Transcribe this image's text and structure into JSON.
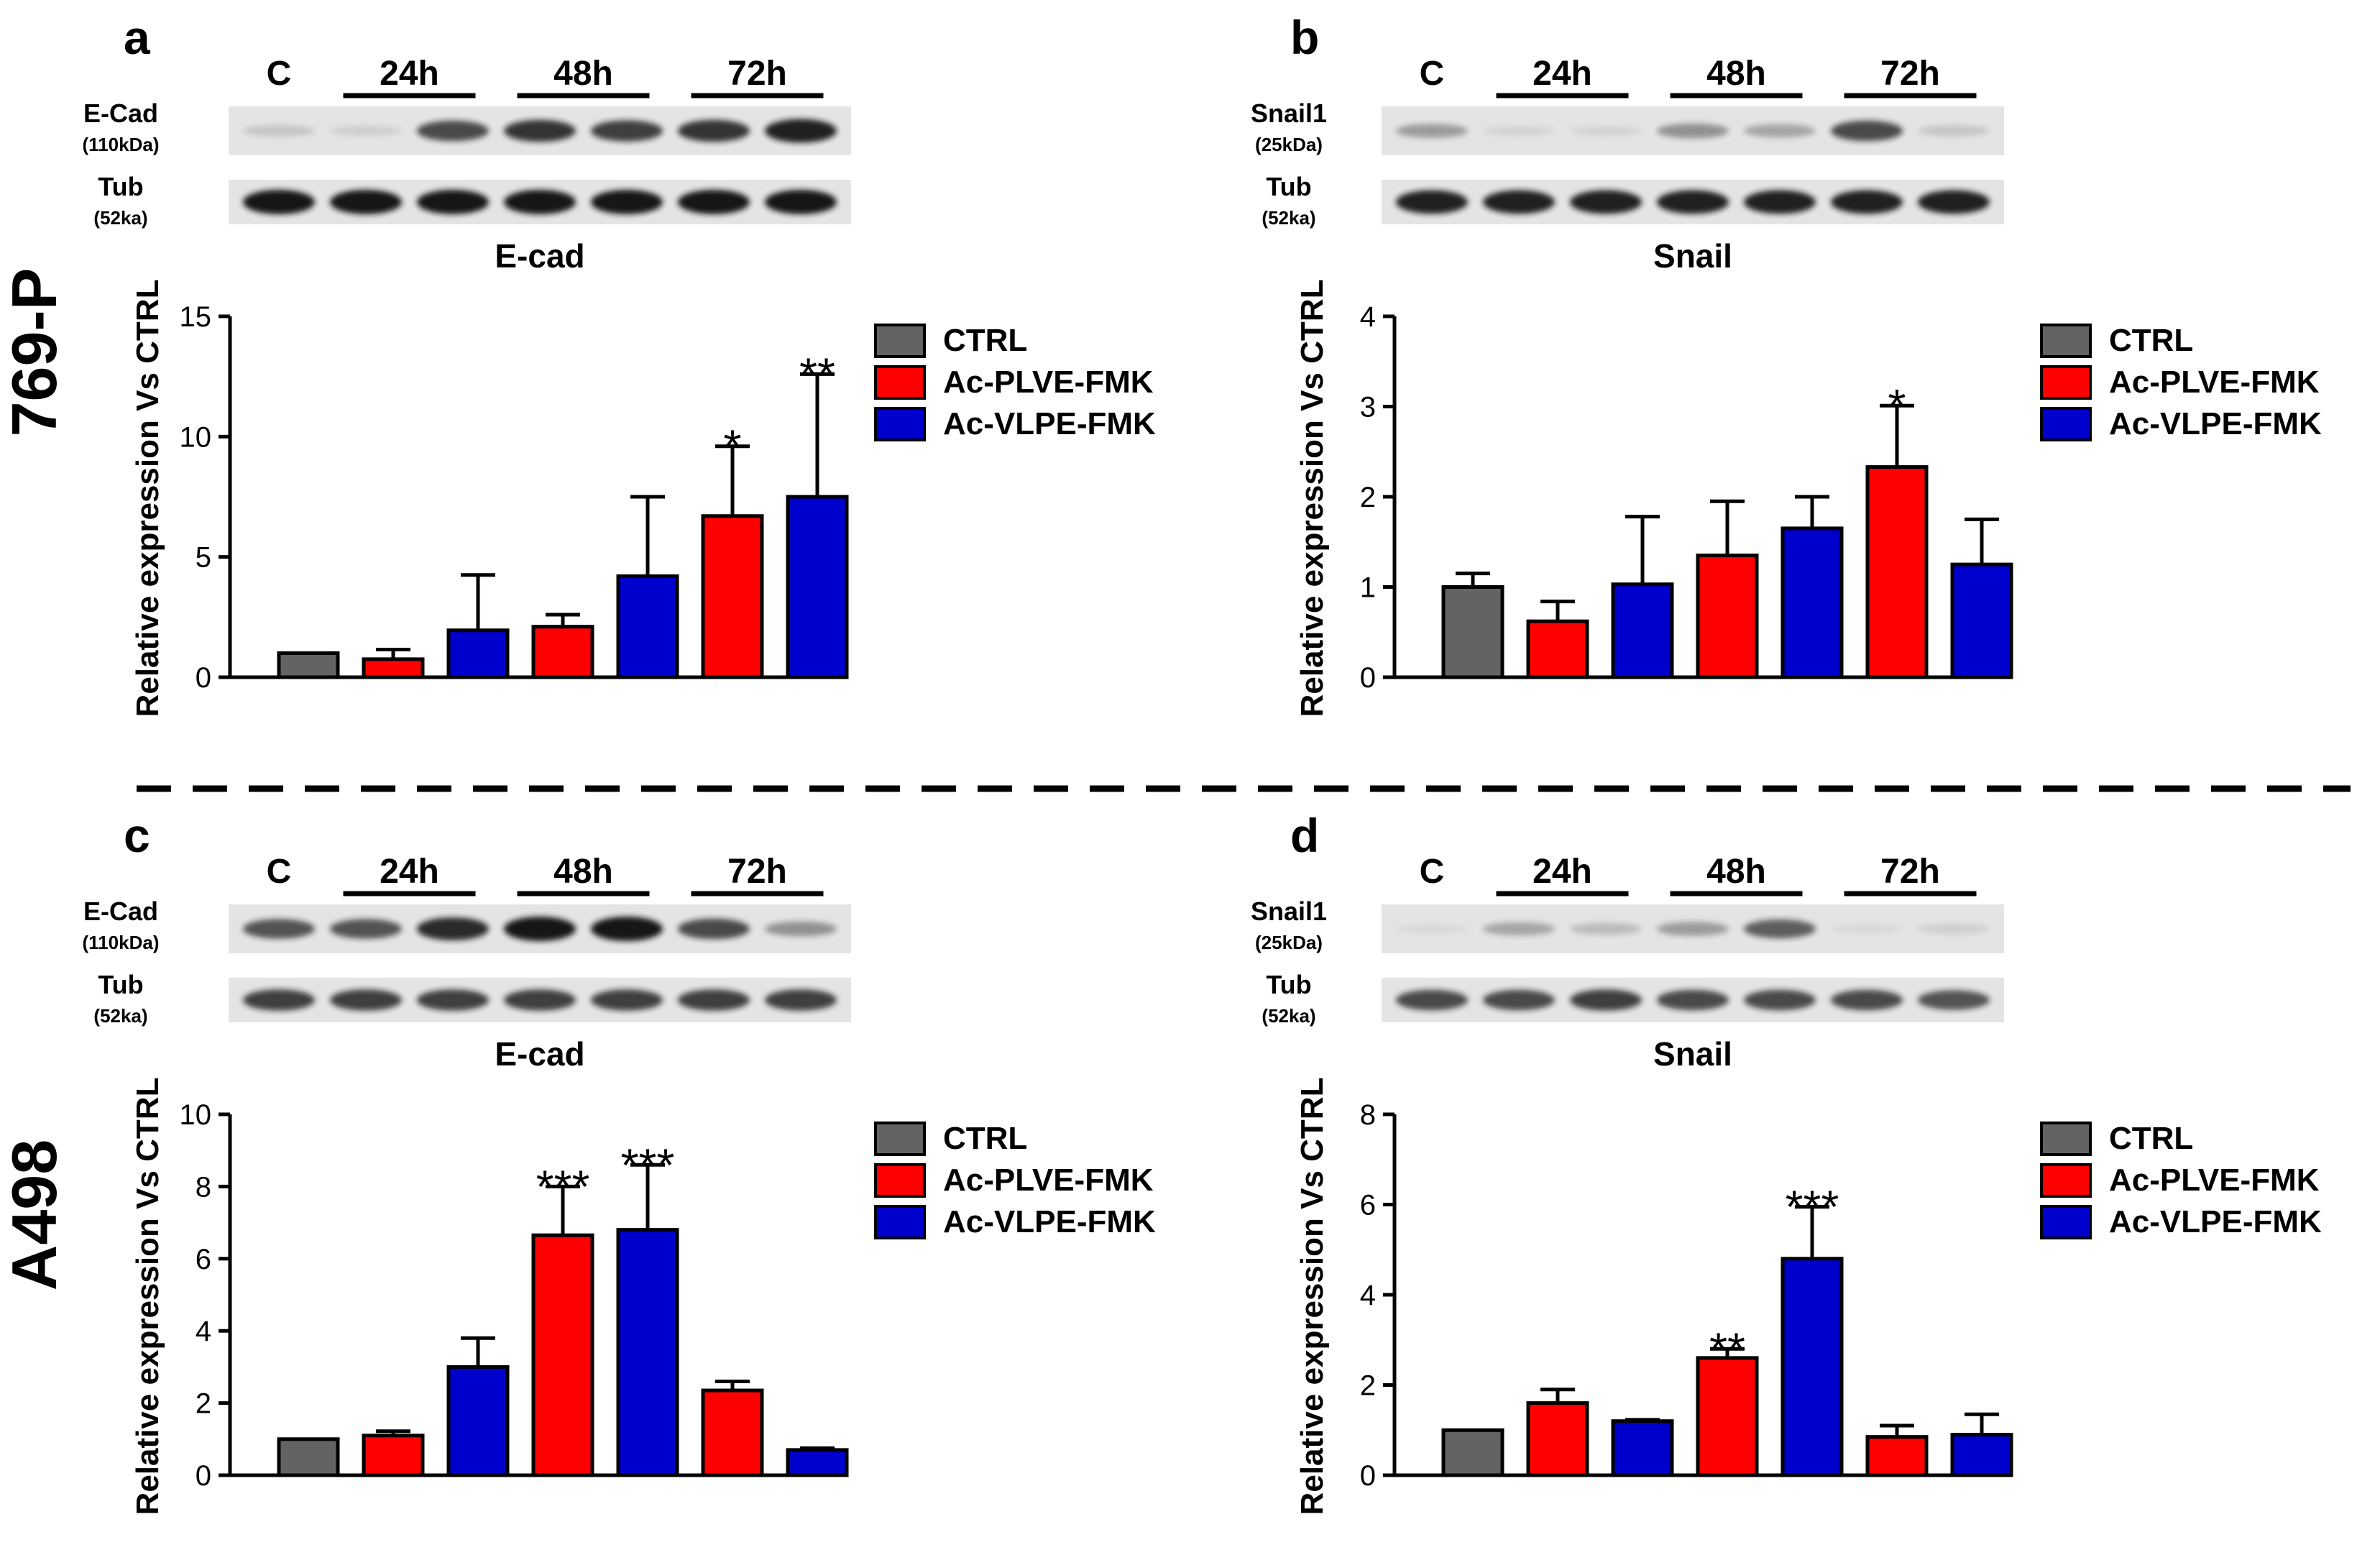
{
  "figure": {
    "row_labels": [
      "769-P",
      "A498"
    ],
    "colors": {
      "ctrl": "#636363",
      "plve": "#ff0000",
      "vlpe": "#0000cc",
      "blot_band": "#141414"
    }
  },
  "panels": [
    {
      "letter": "a",
      "blot": {
        "header": {
          "control": "C",
          "timepoints": [
            "24h",
            "48h",
            "72h"
          ]
        },
        "rows": [
          {
            "protein": "E-Cad",
            "mw": "(110kDa)",
            "intensity": [
              0.15,
              0.1,
              0.75,
              0.85,
              0.8,
              0.85,
              0.95
            ]
          },
          {
            "protein": "Tub",
            "mw": "(52ka)",
            "intensity": [
              1,
              1,
              1,
              1,
              1,
              1,
              1
            ]
          }
        ]
      },
      "legend": [
        "CTRL",
        "Ac-PLVE-FMK",
        "Ac-VLPE-FMK"
      ],
      "chart_data": {
        "type": "bar",
        "title": "E-cad",
        "ylabel": "Relative expression Vs CTRL",
        "ylim": [
          0,
          15
        ],
        "yticks": [
          0,
          5,
          10,
          15
        ],
        "bars": [
          {
            "series": "CTRL",
            "value": 1.0,
            "error": 0,
            "sig": ""
          },
          {
            "series": "Ac-PLVE-FMK",
            "value": 0.75,
            "error": 0.4,
            "sig": ""
          },
          {
            "series": "Ac-VLPE-FMK",
            "value": 1.95,
            "error": 2.3,
            "sig": ""
          },
          {
            "series": "Ac-PLVE-FMK",
            "value": 2.1,
            "error": 0.5,
            "sig": ""
          },
          {
            "series": "Ac-VLPE-FMK",
            "value": 4.2,
            "error": 3.3,
            "sig": ""
          },
          {
            "series": "Ac-PLVE-FMK",
            "value": 6.7,
            "error": 2.9,
            "sig": "*"
          },
          {
            "series": "Ac-VLPE-FMK",
            "value": 7.5,
            "error": 5.1,
            "sig": "**"
          }
        ]
      }
    },
    {
      "letter": "b",
      "blot": {
        "header": {
          "control": "C",
          "timepoints": [
            "24h",
            "48h",
            "72h"
          ]
        },
        "rows": [
          {
            "protein": "Snail1",
            "mw": "(25kDa)",
            "intensity": [
              0.35,
              0.08,
              0.08,
              0.4,
              0.3,
              0.75,
              0.15
            ]
          },
          {
            "protein": "Tub",
            "mw": "(52ka)",
            "intensity": [
              0.95,
              0.95,
              0.95,
              0.95,
              0.95,
              0.95,
              0.95
            ]
          }
        ]
      },
      "legend": [
        "CTRL",
        "Ac-PLVE-FMK",
        "Ac-VLPE-FMK"
      ],
      "chart_data": {
        "type": "bar",
        "title": "Snail",
        "ylabel": "Relative expression Vs CTRL",
        "ylim": [
          0,
          4
        ],
        "yticks": [
          0,
          1,
          2,
          3,
          4
        ],
        "bars": [
          {
            "series": "CTRL",
            "value": 1.0,
            "error": 0.15,
            "sig": ""
          },
          {
            "series": "Ac-PLVE-FMK",
            "value": 0.62,
            "error": 0.22,
            "sig": ""
          },
          {
            "series": "Ac-VLPE-FMK",
            "value": 1.03,
            "error": 0.75,
            "sig": ""
          },
          {
            "series": "Ac-PLVE-FMK",
            "value": 1.35,
            "error": 0.6,
            "sig": ""
          },
          {
            "series": "Ac-VLPE-FMK",
            "value": 1.65,
            "error": 0.35,
            "sig": ""
          },
          {
            "series": "Ac-PLVE-FMK",
            "value": 2.33,
            "error": 0.68,
            "sig": "*"
          },
          {
            "series": "Ac-VLPE-FMK",
            "value": 1.25,
            "error": 0.5,
            "sig": ""
          }
        ]
      }
    },
    {
      "letter": "c",
      "blot": {
        "header": {
          "control": "C",
          "timepoints": [
            "24h",
            "48h",
            "72h"
          ]
        },
        "rows": [
          {
            "protein": "E-Cad",
            "mw": "(110kDa)",
            "intensity": [
              0.7,
              0.7,
              0.9,
              1,
              1,
              0.75,
              0.4
            ]
          },
          {
            "protein": "Tub",
            "mw": "(52ka)",
            "intensity": [
              0.8,
              0.8,
              0.8,
              0.8,
              0.8,
              0.8,
              0.8
            ]
          }
        ]
      },
      "legend": [
        "CTRL",
        "Ac-PLVE-FMK",
        "Ac-VLPE-FMK"
      ],
      "chart_data": {
        "type": "bar",
        "title": "E-cad",
        "ylabel": "Relative expression Vs CTRL",
        "ylim": [
          0,
          10
        ],
        "yticks": [
          0,
          2,
          4,
          6,
          8,
          10
        ],
        "bars": [
          {
            "series": "CTRL",
            "value": 1.0,
            "error": 0,
            "sig": ""
          },
          {
            "series": "Ac-PLVE-FMK",
            "value": 1.1,
            "error": 0.12,
            "sig": ""
          },
          {
            "series": "Ac-VLPE-FMK",
            "value": 3.0,
            "error": 0.8,
            "sig": ""
          },
          {
            "series": "Ac-PLVE-FMK",
            "value": 6.65,
            "error": 1.35,
            "sig": "***"
          },
          {
            "series": "Ac-VLPE-FMK",
            "value": 6.8,
            "error": 1.8,
            "sig": "***"
          },
          {
            "series": "Ac-PLVE-FMK",
            "value": 2.35,
            "error": 0.25,
            "sig": ""
          },
          {
            "series": "Ac-VLPE-FMK",
            "value": 0.7,
            "error": 0.05,
            "sig": ""
          }
        ]
      }
    },
    {
      "letter": "d",
      "blot": {
        "header": {
          "control": "C",
          "timepoints": [
            "24h",
            "48h",
            "72h"
          ]
        },
        "rows": [
          {
            "protein": "Snail1",
            "mw": "(25kDa)",
            "intensity": [
              0.05,
              0.3,
              0.2,
              0.35,
              0.65,
              0.05,
              0.1
            ]
          },
          {
            "protein": "Tub",
            "mw": "(52ka)",
            "intensity": [
              0.75,
              0.75,
              0.8,
              0.75,
              0.75,
              0.75,
              0.7
            ]
          }
        ]
      },
      "legend": [
        "CTRL",
        "Ac-PLVE-FMK",
        "Ac-VLPE-FMK"
      ],
      "chart_data": {
        "type": "bar",
        "title": "Snail",
        "ylabel": "Relative expression Vs CTRL",
        "ylim": [
          0,
          8
        ],
        "yticks": [
          0,
          2,
          4,
          6,
          8
        ],
        "bars": [
          {
            "series": "CTRL",
            "value": 1.0,
            "error": 0,
            "sig": ""
          },
          {
            "series": "Ac-PLVE-FMK",
            "value": 1.6,
            "error": 0.3,
            "sig": ""
          },
          {
            "series": "Ac-VLPE-FMK",
            "value": 1.2,
            "error": 0.03,
            "sig": ""
          },
          {
            "series": "Ac-PLVE-FMK",
            "value": 2.6,
            "error": 0.2,
            "sig": "**"
          },
          {
            "series": "Ac-VLPE-FMK",
            "value": 4.8,
            "error": 1.15,
            "sig": "***"
          },
          {
            "series": "Ac-PLVE-FMK",
            "value": 0.85,
            "error": 0.25,
            "sig": ""
          },
          {
            "series": "Ac-VLPE-FMK",
            "value": 0.9,
            "error": 0.45,
            "sig": ""
          }
        ]
      }
    }
  ]
}
